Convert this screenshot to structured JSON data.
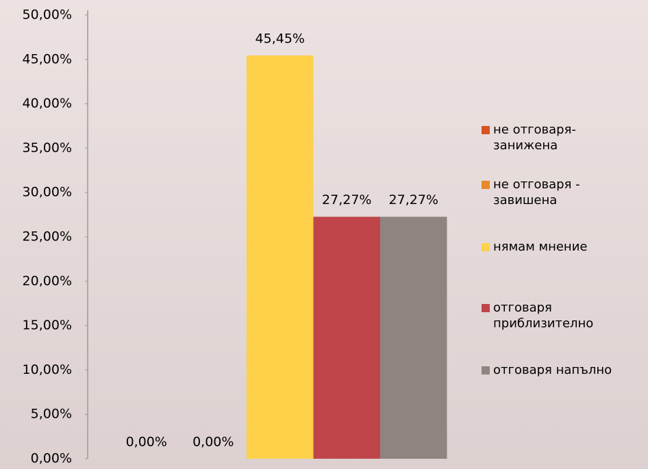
{
  "chart_data": {
    "type": "bar",
    "categories": [
      null
    ],
    "series": [
      {
        "name": "не отговаря-\nзанижена",
        "color": "#d9521f",
        "values": [
          0
        ],
        "value_labels": [
          "0,00%"
        ]
      },
      {
        "name": "не отговаря -\nзавишена",
        "color": "#e8892a",
        "values": [
          0
        ],
        "value_labels": [
          "0,00%"
        ]
      },
      {
        "name": "нямам мнение",
        "color": "#ffd04a",
        "values": [
          45.45
        ],
        "value_labels": [
          "45,45%"
        ]
      },
      {
        "name": "отговаря\nприблизително",
        "color": "#c0454a",
        "values": [
          27.27
        ],
        "value_labels": [
          "27,27%"
        ]
      },
      {
        "name": "отговаря напълно",
        "color": "#8f8480",
        "values": [
          27.27
        ],
        "value_labels": [
          "27,27%"
        ]
      }
    ],
    "ylim": [
      0,
      50
    ],
    "yticks": [
      {
        "value": 0,
        "label": "0,00%"
      },
      {
        "value": 5,
        "label": "5,00%"
      },
      {
        "value": 10,
        "label": "10,00%"
      },
      {
        "value": 15,
        "label": "15,00%"
      },
      {
        "value": 20,
        "label": "20,00%"
      },
      {
        "value": 25,
        "label": "25,00%"
      },
      {
        "value": 30,
        "label": "30,00%"
      },
      {
        "value": 35,
        "label": "35,00%"
      },
      {
        "value": 40,
        "label": "40,00%"
      },
      {
        "value": 45,
        "label": "45,00%"
      },
      {
        "value": 50,
        "label": "50,00%"
      }
    ],
    "legend": "right"
  }
}
